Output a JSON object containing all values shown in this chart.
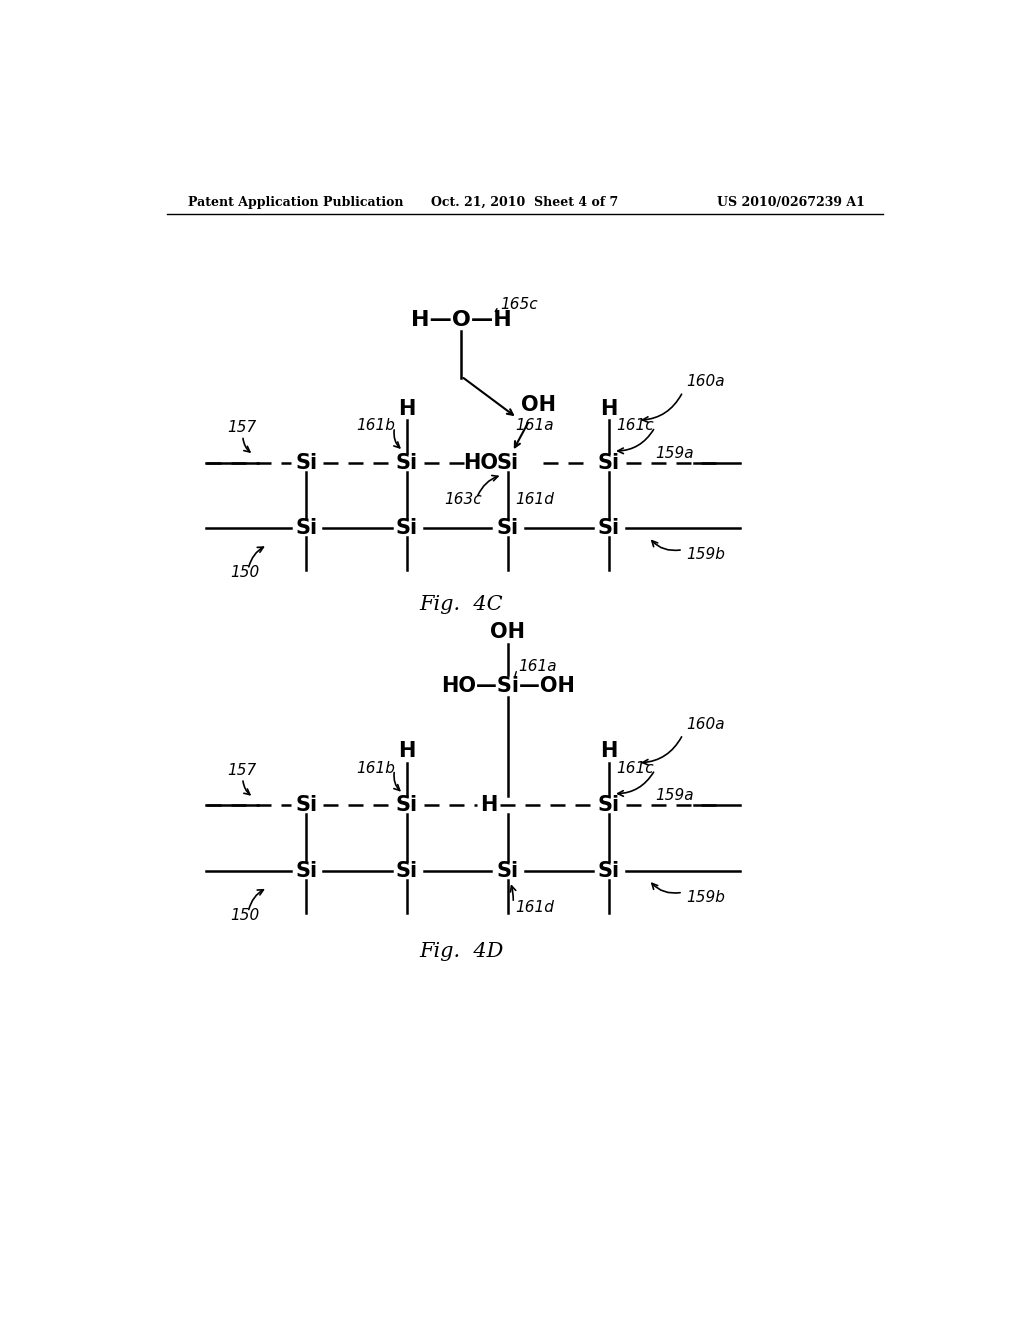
{
  "bg_color": "#ffffff",
  "text_color": "#000000",
  "header_left": "Patent Application Publication",
  "header_center": "Oct. 21, 2010  Sheet 4 of 7",
  "header_right": "US 2010/0267239 A1",
  "fig4c_title": "Fig.  4C",
  "fig4d_title": "Fig.  4D",
  "line_color": "#000000"
}
